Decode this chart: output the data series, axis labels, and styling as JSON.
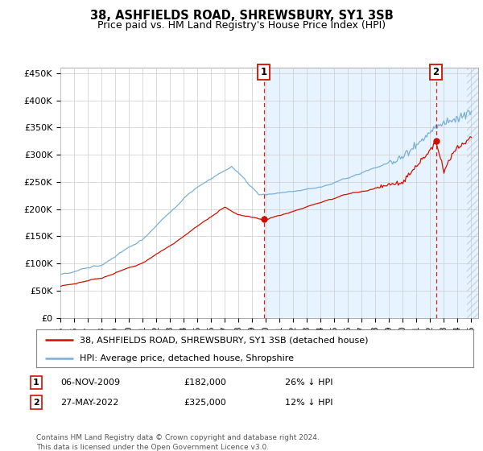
{
  "title1": "38, ASHFIELDS ROAD, SHREWSBURY, SY1 3SB",
  "title2": "Price paid vs. HM Land Registry's House Price Index (HPI)",
  "ylabel_ticks": [
    "£0",
    "£50K",
    "£100K",
    "£150K",
    "£200K",
    "£250K",
    "£300K",
    "£350K",
    "£400K",
    "£450K"
  ],
  "ytick_vals": [
    0,
    50000,
    100000,
    150000,
    200000,
    250000,
    300000,
    350000,
    400000,
    450000
  ],
  "ylim": [
    0,
    460000
  ],
  "xlim_start": 1995.0,
  "xlim_end": 2025.5,
  "hpi_color": "#7ab0d8",
  "price_color": "#cc1100",
  "vline_color": "#cc1100",
  "plot_bg_left": "#ffffff",
  "plot_bg_right": "#ddeeff",
  "marker1_x": 2009.85,
  "marker1_y": 182000,
  "marker1_label": "1",
  "marker2_x": 2022.42,
  "marker2_y": 325000,
  "marker2_label": "2",
  "legend_label1": "38, ASHFIELDS ROAD, SHREWSBURY, SY1 3SB (detached house)",
  "legend_label2": "HPI: Average price, detached house, Shropshire",
  "note1_label": "1",
  "note1_date": "06-NOV-2009",
  "note1_price": "£182,000",
  "note1_hpi": "26% ↓ HPI",
  "note2_label": "2",
  "note2_date": "27-MAY-2022",
  "note2_price": "£325,000",
  "note2_hpi": "12% ↓ HPI",
  "footer": "Contains HM Land Registry data © Crown copyright and database right 2024.\nThis data is licensed under the Open Government Licence v3.0."
}
